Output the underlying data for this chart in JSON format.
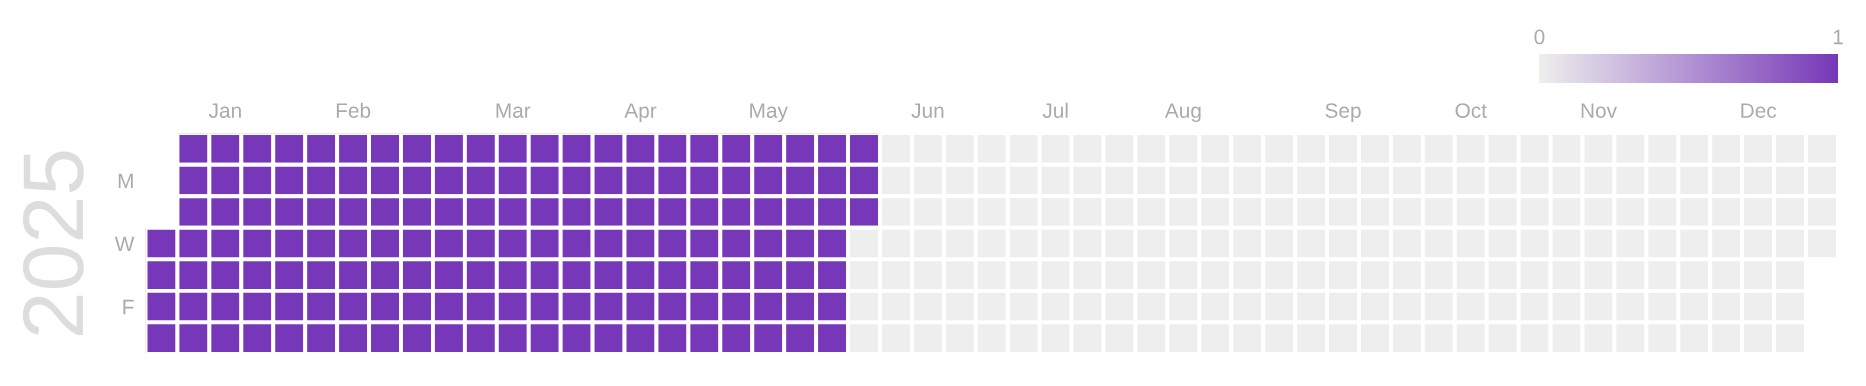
{
  "chart_data": {
    "type": "heatmap",
    "ylabel": "2025",
    "categories": [
      null,
      null,
      "Jan",
      null,
      null,
      null,
      "Feb",
      null,
      null,
      null,
      null,
      "Mar",
      null,
      null,
      null,
      "Apr",
      null,
      null,
      null,
      "May",
      null,
      null,
      null,
      null,
      "Jun",
      null,
      null,
      null,
      "Jul",
      null,
      null,
      null,
      "Aug",
      null,
      null,
      null,
      null,
      "Sep",
      null,
      null,
      null,
      "Oct",
      null,
      null,
      null,
      "Nov",
      null,
      null,
      null,
      null,
      "Dec",
      null,
      null
    ],
    "y_categories": [
      null,
      "M",
      null,
      "W",
      null,
      "F",
      null
    ],
    "cells": [
      [
        null,
        1,
        1,
        1,
        1,
        1,
        1,
        1,
        1,
        1,
        1,
        1,
        1,
        1,
        1,
        1,
        1,
        1,
        1,
        1,
        1,
        1,
        1,
        0,
        0,
        0,
        0,
        0,
        0,
        0,
        0,
        0,
        0,
        0,
        0,
        0,
        0,
        0,
        0,
        0,
        0,
        0,
        0,
        0,
        0,
        0,
        0,
        0,
        0,
        0,
        0,
        0,
        0
      ],
      [
        null,
        1,
        1,
        1,
        1,
        1,
        1,
        1,
        1,
        1,
        1,
        1,
        1,
        1,
        1,
        1,
        1,
        1,
        1,
        1,
        1,
        1,
        1,
        0,
        0,
        0,
        0,
        0,
        0,
        0,
        0,
        0,
        0,
        0,
        0,
        0,
        0,
        0,
        0,
        0,
        0,
        0,
        0,
        0,
        0,
        0,
        0,
        0,
        0,
        0,
        0,
        0,
        0
      ],
      [
        null,
        1,
        1,
        1,
        1,
        1,
        1,
        1,
        1,
        1,
        1,
        1,
        1,
        1,
        1,
        1,
        1,
        1,
        1,
        1,
        1,
        1,
        1,
        0,
        0,
        0,
        0,
        0,
        0,
        0,
        0,
        0,
        0,
        0,
        0,
        0,
        0,
        0,
        0,
        0,
        0,
        0,
        0,
        0,
        0,
        0,
        0,
        0,
        0,
        0,
        0,
        0,
        0
      ],
      [
        1,
        1,
        1,
        1,
        1,
        1,
        1,
        1,
        1,
        1,
        1,
        1,
        1,
        1,
        1,
        1,
        1,
        1,
        1,
        1,
        1,
        1,
        0,
        0,
        0,
        0,
        0,
        0,
        0,
        0,
        0,
        0,
        0,
        0,
        0,
        0,
        0,
        0,
        0,
        0,
        0,
        0,
        0,
        0,
        0,
        0,
        0,
        0,
        0,
        0,
        0,
        0,
        0
      ],
      [
        1,
        1,
        1,
        1,
        1,
        1,
        1,
        1,
        1,
        1,
        1,
        1,
        1,
        1,
        1,
        1,
        1,
        1,
        1,
        1,
        1,
        1,
        0,
        0,
        0,
        0,
        0,
        0,
        0,
        0,
        0,
        0,
        0,
        0,
        0,
        0,
        0,
        0,
        0,
        0,
        0,
        0,
        0,
        0,
        0,
        0,
        0,
        0,
        0,
        0,
        0,
        0,
        null
      ],
      [
        1,
        1,
        1,
        1,
        1,
        1,
        1,
        1,
        1,
        1,
        1,
        1,
        1,
        1,
        1,
        1,
        1,
        1,
        1,
        1,
        1,
        1,
        0,
        0,
        0,
        0,
        0,
        0,
        0,
        0,
        0,
        0,
        0,
        0,
        0,
        0,
        0,
        0,
        0,
        0,
        0,
        0,
        0,
        0,
        0,
        0,
        0,
        0,
        0,
        0,
        0,
        0,
        null
      ],
      [
        1,
        1,
        1,
        1,
        1,
        1,
        1,
        1,
        1,
        1,
        1,
        1,
        1,
        1,
        1,
        1,
        1,
        1,
        1,
        1,
        1,
        1,
        0,
        0,
        0,
        0,
        0,
        0,
        0,
        0,
        0,
        0,
        0,
        0,
        0,
        0,
        0,
        0,
        0,
        0,
        0,
        0,
        0,
        0,
        0,
        0,
        0,
        0,
        0,
        0,
        0,
        0,
        null
      ]
    ],
    "colors": [
      "#eeeeee",
      "#7638b8"
    ],
    "clim": [
      0,
      1
    ],
    "cticks": [
      0,
      1
    ]
  }
}
